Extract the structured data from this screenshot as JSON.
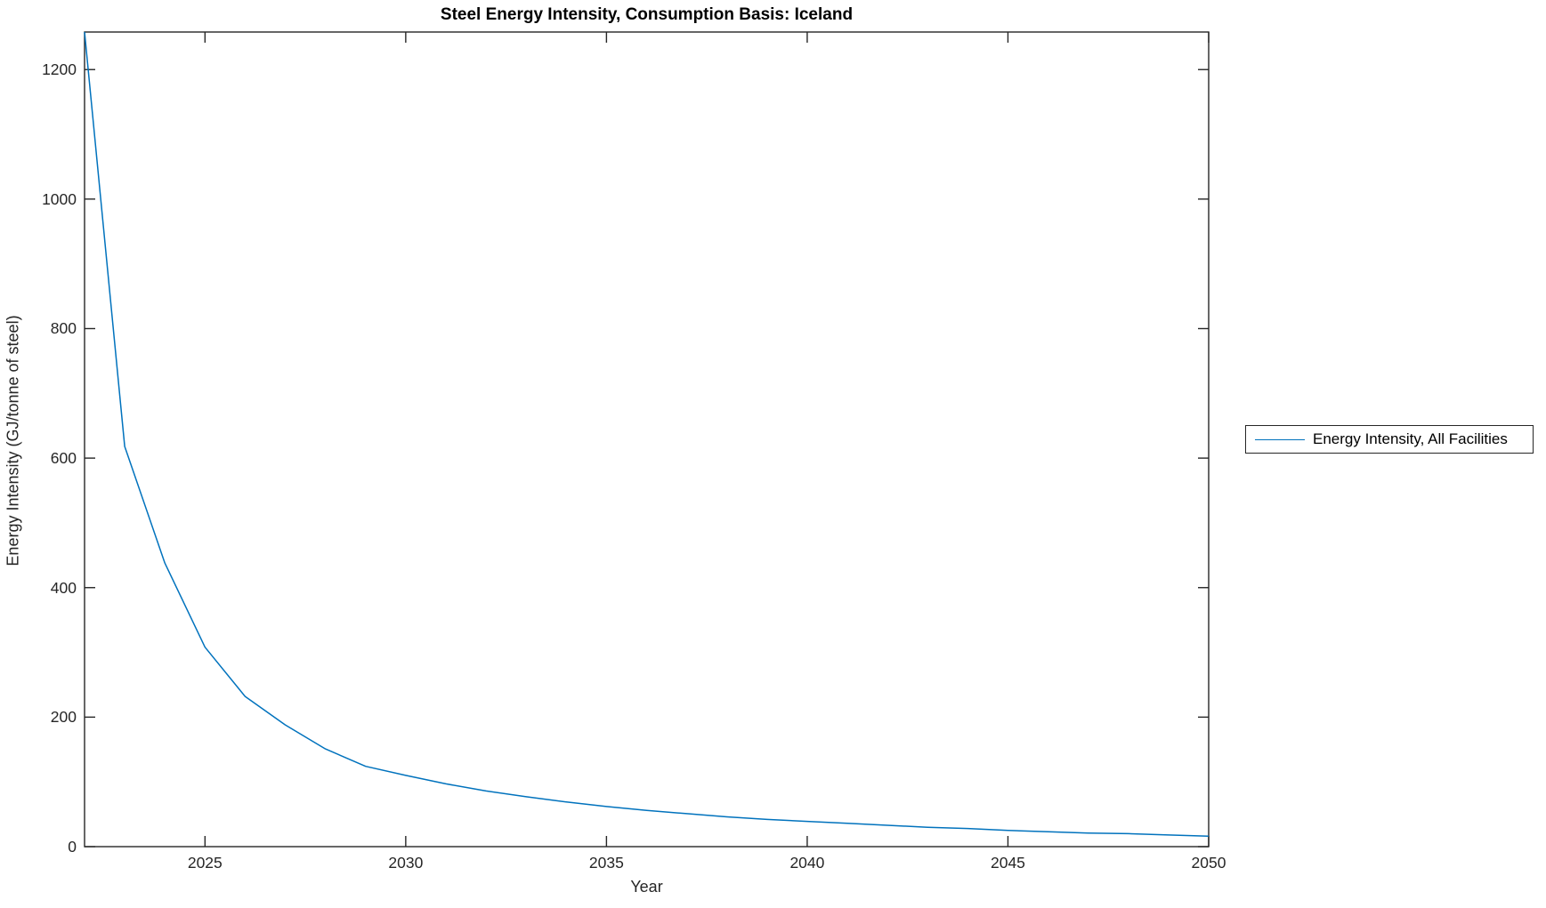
{
  "figure": {
    "background": "#ffffff"
  },
  "chart_data": {
    "type": "line",
    "title": "Steel Energy Intensity, Consumption Basis: Iceland",
    "xlabel": "Year",
    "ylabel": "Energy Intensity (GJ/tonne of steel)",
    "xlim": [
      2022,
      2050
    ],
    "ylim": [
      0,
      1258
    ],
    "xticks": [
      2025,
      2030,
      2035,
      2040,
      2045,
      2050
    ],
    "yticks": [
      0,
      200,
      400,
      600,
      800,
      1000,
      1200
    ],
    "grid": false,
    "box": true,
    "tick_direction": "in",
    "legend_position": "outside-right",
    "axis_color": "#262626",
    "series": [
      {
        "name": "Energy Intensity, All Facilities",
        "color": "#0072BD",
        "x": [
          2022,
          2023,
          2024,
          2025,
          2026,
          2027,
          2028,
          2029,
          2030,
          2031,
          2032,
          2033,
          2034,
          2035,
          2036,
          2037,
          2038,
          2039,
          2040,
          2041,
          2042,
          2043,
          2044,
          2045,
          2046,
          2047,
          2048,
          2049,
          2050
        ],
        "y": [
          1258,
          618,
          438,
          308,
          232,
          188,
          151,
          124,
          110,
          97,
          86,
          77,
          69,
          62,
          56,
          51,
          46,
          42,
          39,
          36,
          33,
          30,
          28,
          25,
          23,
          21,
          20,
          18,
          16
        ]
      }
    ]
  },
  "legend": {
    "entries": [
      {
        "label": "Energy Intensity, All Facilities",
        "color": "#0072BD"
      }
    ]
  }
}
